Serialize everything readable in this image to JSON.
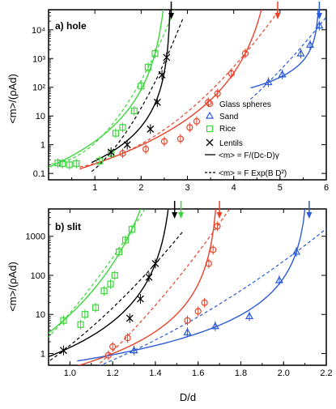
{
  "chart_data": [
    {
      "type": "scatter",
      "panel_label": "a) hole",
      "ylabel": "<m>/(ρAd)",
      "xlabel": "",
      "xlim": [
        0,
        6
      ],
      "ylim": [
        0.06,
        50000
      ],
      "y_scale": "log",
      "x_ticks": [
        "1",
        "2",
        "3",
        "4",
        "5",
        "6"
      ],
      "y_ticks": [
        "0.1",
        "1",
        "10",
        "10²",
        "10³",
        "10⁴"
      ],
      "series": [
        {
          "name": "Glass spheres",
          "color": "#e8432a",
          "marker": "circle",
          "x": [
            1.6,
            2.1,
            2.5,
            2.85,
            3.05,
            3.2,
            3.45,
            3.65,
            3.95,
            4.25
          ],
          "y": [
            0.5,
            0.7,
            1.3,
            1.6,
            4.0,
            6.5,
            30,
            60,
            300,
            1500
          ]
        },
        {
          "name": "Sand",
          "color": "#2a5ad8",
          "marker": "triangle",
          "x": [
            4.75,
            5.05,
            5.45,
            5.65,
            5.85
          ],
          "y": [
            150,
            280,
            1500,
            3000,
            14000
          ]
        },
        {
          "name": "Rice",
          "color": "#3cd63c",
          "marker": "square",
          "x": [
            0.2,
            0.3,
            0.45,
            0.6,
            1.1,
            1.35,
            1.45,
            1.6,
            1.85,
            2.0,
            2.15,
            2.3
          ],
          "y": [
            0.23,
            0.22,
            0.2,
            0.22,
            0.27,
            0.5,
            2.5,
            4.0,
            15,
            110,
            500,
            1500
          ]
        },
        {
          "name": "Lentils",
          "color": "#000000",
          "marker": "cross",
          "x": [
            1.35,
            1.7,
            2.2,
            2.35,
            2.45,
            2.55
          ],
          "y": [
            0.55,
            1.0,
            3.5,
            30,
            270,
            1100
          ]
        }
      ],
      "arrows": [
        {
          "x": 2.65,
          "color": "#000000"
        },
        {
          "x": 4.95,
          "color": "#e8432a"
        },
        {
          "x": 5.85,
          "color": "#2a5ad8"
        }
      ],
      "legend": {
        "position": "right",
        "solid_fit_label": "<m> = F/(Dc-D)γ",
        "dashed_fit_label": "<m> = F Exp(B D²)"
      }
    },
    {
      "type": "scatter",
      "panel_label": "b) slit",
      "ylabel": "<m>/(ρAd)",
      "xlabel": "D/d",
      "xlim": [
        0.9,
        2.2
      ],
      "ylim": [
        0.5,
        5000
      ],
      "y_scale": "log",
      "x_ticks": [
        "1.0",
        "1.2",
        "1.4",
        "1.6",
        "1.8",
        "2.0",
        "2.2"
      ],
      "y_ticks": [
        "1",
        "10",
        "100",
        "1000"
      ],
      "series": [
        {
          "name": "Glass spheres",
          "color": "#e8432a",
          "marker": "circle",
          "x": [
            1.18,
            1.2,
            1.27,
            1.55,
            1.6,
            1.63,
            1.65,
            1.67,
            1.69
          ],
          "y": [
            0.9,
            1.5,
            2.5,
            7,
            12,
            20,
            200,
            450,
            1800
          ]
        },
        {
          "name": "Sand",
          "color": "#2a5ad8",
          "marker": "triangle",
          "x": [
            1.3,
            1.55,
            1.68,
            1.84,
            1.98,
            2.06
          ],
          "y": [
            1.2,
            3.5,
            5,
            9,
            75,
            400
          ]
        },
        {
          "name": "Rice",
          "color": "#3cd63c",
          "marker": "square",
          "x": [
            0.97,
            1.05,
            1.07,
            1.12,
            1.16,
            1.19,
            1.21,
            1.23,
            1.26,
            1.29
          ],
          "y": [
            7,
            5.5,
            10,
            15,
            40,
            60,
            100,
            400,
            800,
            1500
          ]
        },
        {
          "name": "Lentils",
          "color": "#000000",
          "marker": "cross",
          "x": [
            0.97,
            1.28,
            1.33,
            1.37,
            1.4
          ],
          "y": [
            1.2,
            8,
            25,
            90,
            200
          ]
        }
      ],
      "arrows": [
        {
          "x": 1.49,
          "color": "#000000"
        },
        {
          "x": 1.52,
          "color": "#3cd63c"
        },
        {
          "x": 1.7,
          "color": "#e8432a"
        },
        {
          "x": 2.12,
          "color": "#2a5ad8"
        }
      ]
    }
  ]
}
